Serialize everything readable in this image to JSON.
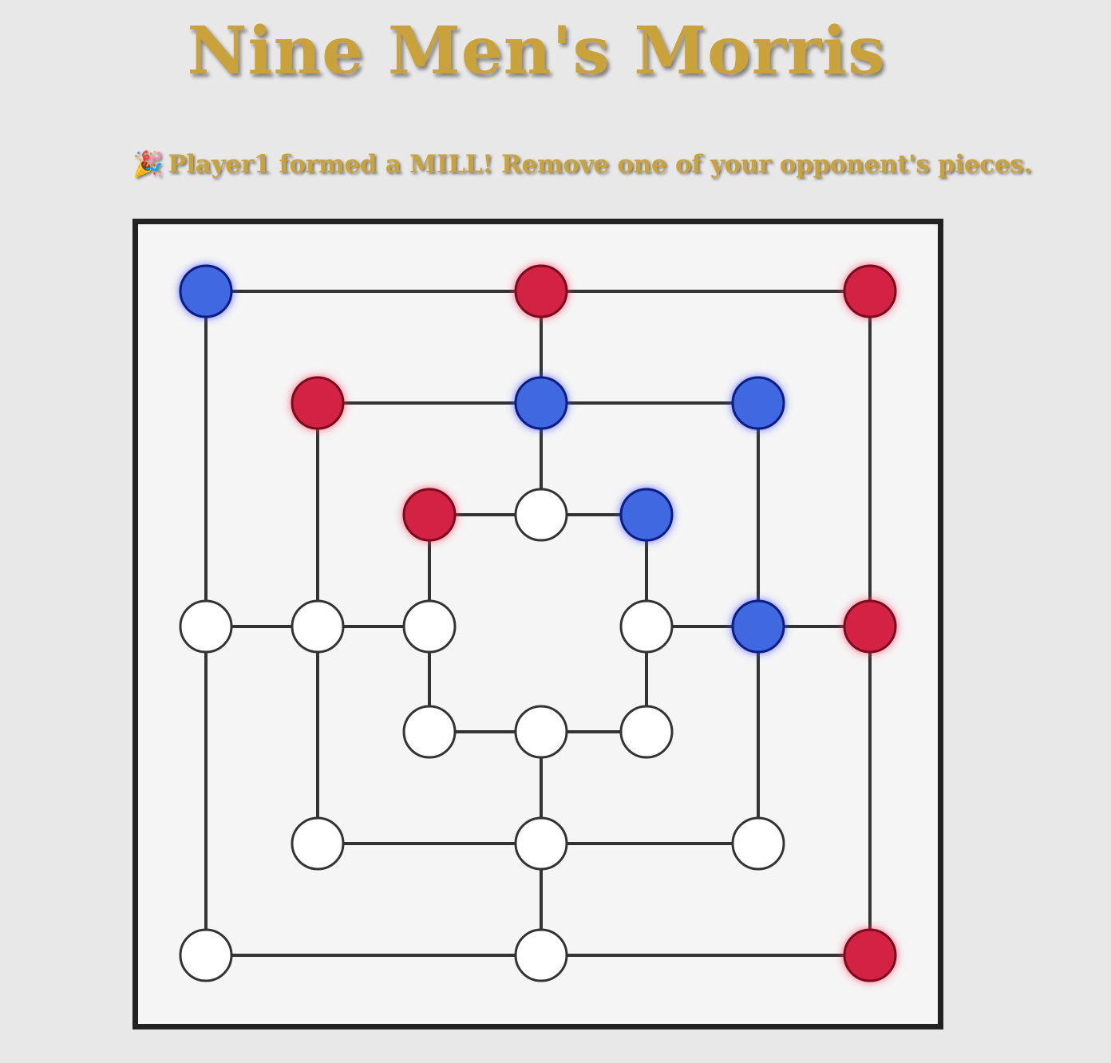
{
  "header": {
    "title": "Nine Men's Morris"
  },
  "status": {
    "icon": "party-popper-icon",
    "emoji": "🎉",
    "message": "Player1 formed a MILL! Remove one of your opponent's pieces."
  },
  "colors": {
    "background": "#e8e8e8",
    "board": "#f5f5f5",
    "gold_text": "#c9a23c",
    "player1_red": "#d42244",
    "player2_blue": "#4169e1",
    "empty": "#ffffff",
    "line": "#333333"
  },
  "board": {
    "layout": "7x7 nine men's morris grid",
    "points": [
      {
        "id": "a7",
        "state": "blue"
      },
      {
        "id": "d7",
        "state": "red"
      },
      {
        "id": "g7",
        "state": "red"
      },
      {
        "id": "b6",
        "state": "red"
      },
      {
        "id": "d6",
        "state": "blue"
      },
      {
        "id": "f6",
        "state": "blue"
      },
      {
        "id": "c5",
        "state": "red"
      },
      {
        "id": "d5",
        "state": "empty"
      },
      {
        "id": "e5",
        "state": "blue"
      },
      {
        "id": "a4",
        "state": "empty"
      },
      {
        "id": "b4",
        "state": "empty"
      },
      {
        "id": "c4",
        "state": "empty"
      },
      {
        "id": "e4",
        "state": "empty"
      },
      {
        "id": "f4",
        "state": "blue"
      },
      {
        "id": "g4",
        "state": "red"
      },
      {
        "id": "c3",
        "state": "empty"
      },
      {
        "id": "d3",
        "state": "empty"
      },
      {
        "id": "e3",
        "state": "empty"
      },
      {
        "id": "b2",
        "state": "empty"
      },
      {
        "id": "d2",
        "state": "empty"
      },
      {
        "id": "f2",
        "state": "empty"
      },
      {
        "id": "a1",
        "state": "empty"
      },
      {
        "id": "d1",
        "state": "empty"
      },
      {
        "id": "g1",
        "state": "red"
      }
    ]
  }
}
